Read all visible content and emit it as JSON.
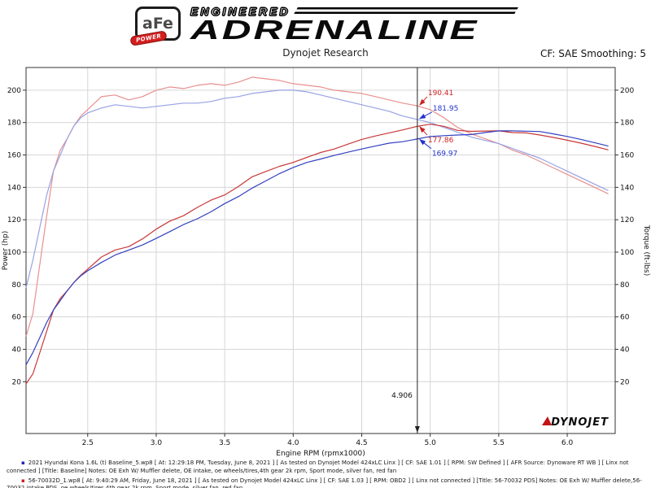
{
  "header": {
    "brand": {
      "afe": "aFe",
      "power": "POWER",
      "engineered": "ENGINEERED",
      "adrenaline": "ADRENALINE"
    },
    "subtitle": "Dynojet Research",
    "cf_label": "CF: SAE Smoothing: 5"
  },
  "chart_data": {
    "type": "line",
    "title": "",
    "xlabel": "Engine RPM (rpmx1000)",
    "ylabel_left": "Power (hp)",
    "ylabel_right": "Torque (ft-lbs)",
    "xlim": [
      2.05,
      6.35
    ],
    "ylim": [
      -12,
      214
    ],
    "x_ticks": [
      "2.5",
      "3.0",
      "3.5",
      "4.0",
      "4.5",
      "5.0",
      "5.5",
      "6.0"
    ],
    "y_ticks": [
      20,
      40,
      60,
      80,
      100,
      120,
      140,
      160,
      180,
      200
    ],
    "grid": true,
    "watermark": "DYNOJET",
    "x": [
      2.05,
      2.1,
      2.15,
      2.2,
      2.25,
      2.3,
      2.35,
      2.4,
      2.45,
      2.5,
      2.6,
      2.7,
      2.8,
      2.9,
      3.0,
      3.1,
      3.2,
      3.3,
      3.4,
      3.5,
      3.6,
      3.7,
      3.8,
      3.9,
      4.0,
      4.1,
      4.2,
      4.3,
      4.4,
      4.5,
      4.6,
      4.7,
      4.8,
      4.9,
      5.0,
      5.1,
      5.2,
      5.3,
      5.4,
      5.5,
      5.6,
      5.7,
      5.8,
      5.9,
      6.0,
      6.1,
      6.2,
      6.3
    ],
    "series": [
      {
        "name": "torque-56-70032-intake",
        "unit": "ft-lbs",
        "color": "#e89090",
        "values": [
          48,
          62,
          92,
          122,
          150,
          163,
          170,
          178,
          184,
          188,
          196,
          197,
          194,
          196,
          200,
          202,
          201,
          203,
          204,
          203,
          205,
          208,
          207,
          206,
          204,
          203,
          202,
          200,
          199,
          198,
          196,
          194,
          192,
          190.4,
          188,
          183,
          177,
          173,
          170,
          167,
          163,
          160,
          156,
          152,
          148,
          144,
          140,
          136
        ]
      },
      {
        "name": "torque-baseline",
        "unit": "ft-lbs",
        "color": "#98a2e4",
        "values": [
          78,
          95,
          115,
          135,
          150,
          160,
          170,
          178,
          183,
          186,
          189,
          191,
          190,
          189,
          190,
          191,
          192,
          192,
          193,
          195,
          196,
          198,
          199,
          200,
          200,
          199,
          197,
          195,
          193,
          191,
          189,
          187,
          184,
          182,
          180,
          177,
          174,
          171,
          169,
          167,
          164,
          161,
          158,
          154,
          150,
          146,
          142,
          138
        ]
      },
      {
        "name": "power-56-70032-intake",
        "unit": "hp",
        "color": "#c83838",
        "values": [
          18.7,
          24.8,
          37.7,
          51.1,
          64.3,
          71.4,
          76.1,
          81.3,
          85.8,
          89.5,
          97,
          101.3,
          103.4,
          108.2,
          114.2,
          119.2,
          122.5,
          127.6,
          132.1,
          135.3,
          140.5,
          146.5,
          149.8,
          153,
          155.4,
          158.5,
          161.5,
          163.7,
          166.7,
          169.6,
          171.7,
          173.6,
          175.5,
          177.6,
          179,
          177.7,
          175.2,
          174.6,
          174.8,
          174.9,
          173.8,
          173.6,
          172.3,
          170.8,
          169.1,
          167.3,
          165.3,
          163.1
        ]
      },
      {
        "name": "power-baseline",
        "unit": "hp",
        "color": "#3240c0",
        "values": [
          30.4,
          38,
          47.1,
          56.5,
          64.3,
          70.1,
          76.1,
          81.3,
          85.4,
          88.5,
          93.6,
          98.2,
          101.3,
          104.4,
          108.5,
          112.7,
          117,
          120.6,
          124.9,
          130,
          134.3,
          139.5,
          144,
          148.5,
          152.3,
          155.4,
          157.5,
          159.7,
          161.7,
          163.7,
          165.5,
          167.3,
          168.2,
          169.8,
          171.4,
          171.9,
          172.3,
          172.6,
          173.8,
          174.9,
          174.9,
          174.7,
          174.5,
          173,
          171.4,
          169.6,
          167.6,
          165.5
        ]
      }
    ],
    "cursor": {
      "x": 4.906,
      "label": "4.906",
      "values": [
        {
          "value": "190.41",
          "y": 190.41,
          "color": "#cc2222",
          "dx": 13,
          "dy": -13
        },
        {
          "value": "181.95",
          "y": 181.95,
          "color": "#2233cc",
          "dx": 19,
          "dy": -11
        },
        {
          "value": "177.86",
          "y": 177.86,
          "color": "#cc2222",
          "dx": 13,
          "dy": 20
        },
        {
          "value": "169.97",
          "y": 169.97,
          "color": "#2233cc",
          "dx": 18,
          "dy": 21
        }
      ]
    }
  },
  "legend": [
    {
      "color": "#2222bb",
      "text": "2021 Hyundai Kona 1.6L (t) Baseline_5.wp8 [ At: 12:29:18 PM, Tuesday, June 8, 2021 ] [ As tested on Dynojet Model 424xLC Linx ] [ CF: SAE 1.01 ] [ RPM: SW Defined ] [ AFR Source: Dynoware RT WB ] [ Linx not connected ] [Title: Baseline]  Notes: OE Exh W/ Muffler delete, OE intake, oe wheels/tires,4th gear 2k rpm, Sport mode, silver fan, red fan"
    },
    {
      "color": "#cc2222",
      "text": "56-70032D_1.wp8 [ At: 9:40:29 AM, Friday, June 18, 2021 ] [ As tested on Dynojet Model 424xLC Linx ] [ CF: SAE 1.03 ] [ RPM: OBD2 ] [ Linx not connected ] [Title: 56-70032 PDS]  Notes: OE Exh W/ Muffler delete,56-70032 intake PDS, oe wheels/tires,4th gear 2k rpm, Sport mode, silver fan, red fan"
    }
  ]
}
